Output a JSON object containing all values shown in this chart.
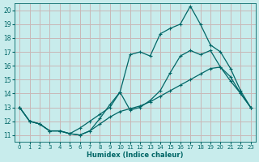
{
  "xlabel": "Humidex (Indice chaleur)",
  "background_color": "#c8ecec",
  "grid_color": "#c8b8b8",
  "line_color": "#006666",
  "xlim": [
    -0.5,
    23.5
  ],
  "ylim": [
    10.5,
    20.5
  ],
  "xticks": [
    0,
    1,
    2,
    3,
    4,
    5,
    6,
    7,
    8,
    9,
    10,
    11,
    12,
    13,
    14,
    15,
    16,
    17,
    18,
    19,
    20,
    21,
    22,
    23
  ],
  "yticks": [
    11,
    12,
    13,
    14,
    15,
    16,
    17,
    18,
    19,
    20
  ],
  "line1_y": [
    13,
    12,
    11.8,
    11.3,
    11.3,
    11.1,
    11.5,
    12.0,
    12.5,
    13.0,
    14.1,
    16.8,
    17.0,
    16.7,
    18.3,
    18.7,
    19.0,
    20.3,
    19.0,
    17.5,
    17.0,
    15.8,
    14.2,
    13.0
  ],
  "line2_y": [
    13,
    12,
    11.8,
    11.3,
    11.3,
    11.1,
    11.0,
    11.3,
    12.2,
    13.2,
    14.1,
    12.8,
    13.0,
    13.5,
    14.2,
    15.5,
    16.7,
    17.1,
    16.8,
    17.1,
    15.9,
    14.9,
    14.0,
    13.0
  ],
  "line3_y": [
    13,
    12,
    11.8,
    11.3,
    11.3,
    11.1,
    11.0,
    11.3,
    11.8,
    12.3,
    12.7,
    12.9,
    13.1,
    13.4,
    13.8,
    14.2,
    14.6,
    15.0,
    15.4,
    15.8,
    15.9,
    15.2,
    14.0,
    13.0
  ]
}
